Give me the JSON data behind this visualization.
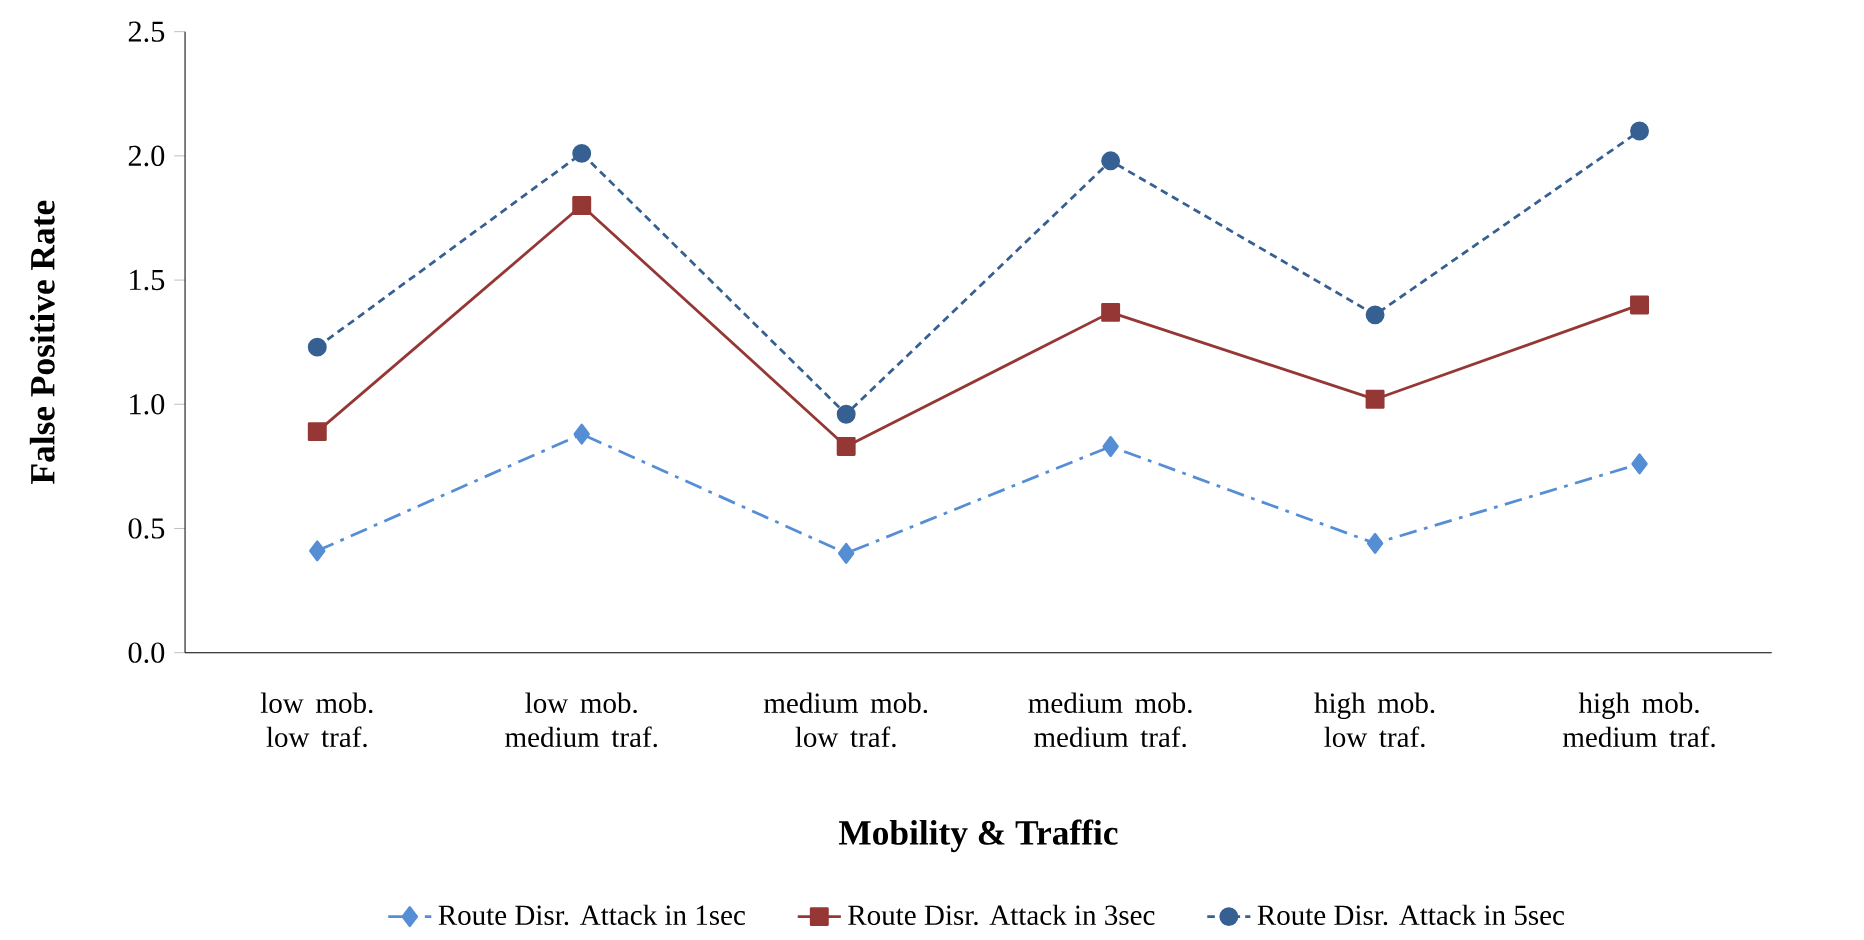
{
  "chart_data": {
    "type": "line",
    "xlabel": "Mobility & Traffic",
    "ylabel": "False Positive Rate",
    "categories": [
      "low mob. low traf.",
      "low mob. medium traf.",
      "medium mob. low traf.",
      "medium mob. medium traf.",
      "high mob. low traf.",
      "high mob. medium traf."
    ],
    "series": [
      {
        "name": "Route Disr. Attack in 1sec",
        "color": "#558ed5",
        "marker": "diamond",
        "line_style": "dashdot",
        "values": [
          0.41,
          0.88,
          0.4,
          0.83,
          0.44,
          0.76
        ]
      },
      {
        "name": "Route Disr. Attack in 3sec",
        "color": "#953735",
        "marker": "square",
        "line_style": "solid",
        "values": [
          0.89,
          1.8,
          0.83,
          1.37,
          1.02,
          1.4
        ]
      },
      {
        "name": "Route Disr. Attack in 5sec",
        "color": "#376092",
        "marker": "circle",
        "line_style": "dashed",
        "values": [
          1.23,
          2.01,
          0.96,
          1.98,
          1.36,
          2.1
        ]
      }
    ],
    "ylim": [
      0,
      2.5
    ],
    "yticks": [
      {
        "value": 0,
        "label": "0.0"
      },
      {
        "value": 0.5,
        "label": "0.5"
      },
      {
        "value": 1.0,
        "label": "1.0"
      },
      {
        "value": 1.5,
        "label": "1.5"
      },
      {
        "value": 2.0,
        "label": "2.0"
      },
      {
        "value": 2.5,
        "label": "2.5"
      }
    ],
    "legend": "bottom"
  }
}
